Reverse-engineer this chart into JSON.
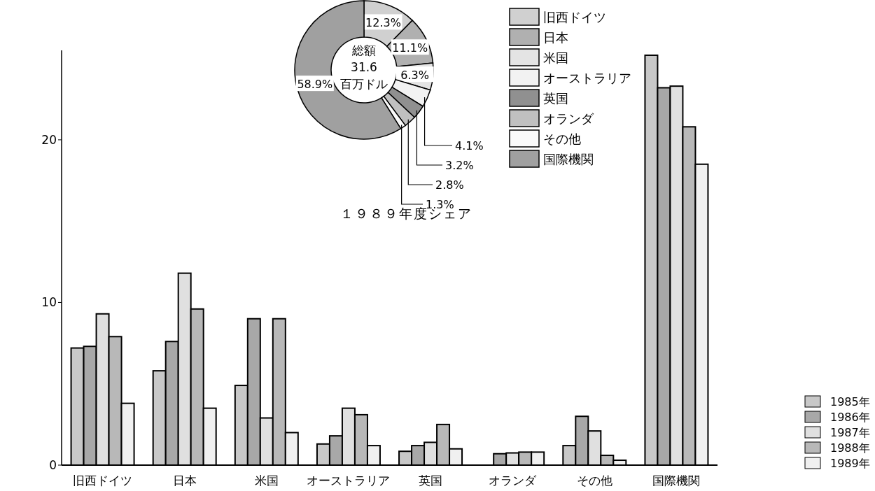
{
  "chart_data": [
    {
      "type": "bar",
      "categories": [
        "旧西ドイツ",
        "日本",
        "米国",
        "オーストラリア",
        "英国",
        "オランダ",
        "その他",
        "国際機関"
      ],
      "series": [
        {
          "name": "1985年",
          "color": "#c8c8c8",
          "values": [
            7.2,
            5.8,
            4.9,
            1.3,
            0.85,
            null,
            1.2,
            25.2
          ]
        },
        {
          "name": "1986年",
          "color": "#a8a8a8",
          "values": [
            7.3,
            7.6,
            9.0,
            1.8,
            1.2,
            0.7,
            3.0,
            23.2
          ]
        },
        {
          "name": "1987年",
          "color": "#e0e0e0",
          "values": [
            9.3,
            11.8,
            2.9,
            3.5,
            1.4,
            0.75,
            2.1,
            23.3
          ]
        },
        {
          "name": "1988年",
          "color": "#b8b8b8",
          "values": [
            7.9,
            9.6,
            9.0,
            3.1,
            2.5,
            0.8,
            0.6,
            20.8
          ]
        },
        {
          "name": "1989年",
          "color": "#f0f0f0",
          "values": [
            3.8,
            3.5,
            2.0,
            1.2,
            1.0,
            0.8,
            0.3,
            18.5
          ]
        }
      ],
      "ylim": [
        0,
        25.5
      ],
      "yticks": [
        0,
        10,
        20
      ],
      "grid": false,
      "legend": "bottom right"
    },
    {
      "type": "donut",
      "title": "１９８９年度シェア",
      "annotations": [
        "総額\n31.6\n百万ドル"
      ],
      "categories": [
        "旧西ドイツ",
        "日本",
        "米国",
        "オーストラリア",
        "英国",
        "オランダ",
        "その他",
        "国際機関"
      ],
      "values": [
        12.3,
        11.1,
        6.3,
        4.1,
        3.2,
        2.8,
        1.3,
        58.9
      ],
      "value_labels": [
        "12.3%",
        "11.1%",
        "6.3%",
        "4.1%",
        "3.2%",
        "2.8%",
        "1.3%",
        "58.9%"
      ],
      "colors": [
        "#d0d0d0",
        "#b0b0b0",
        "#e4e4e4",
        "#f2f2f2",
        "#909090",
        "#c0c0c0",
        "#fafafa",
        "#a0a0a0"
      ],
      "legend": "right"
    }
  ]
}
